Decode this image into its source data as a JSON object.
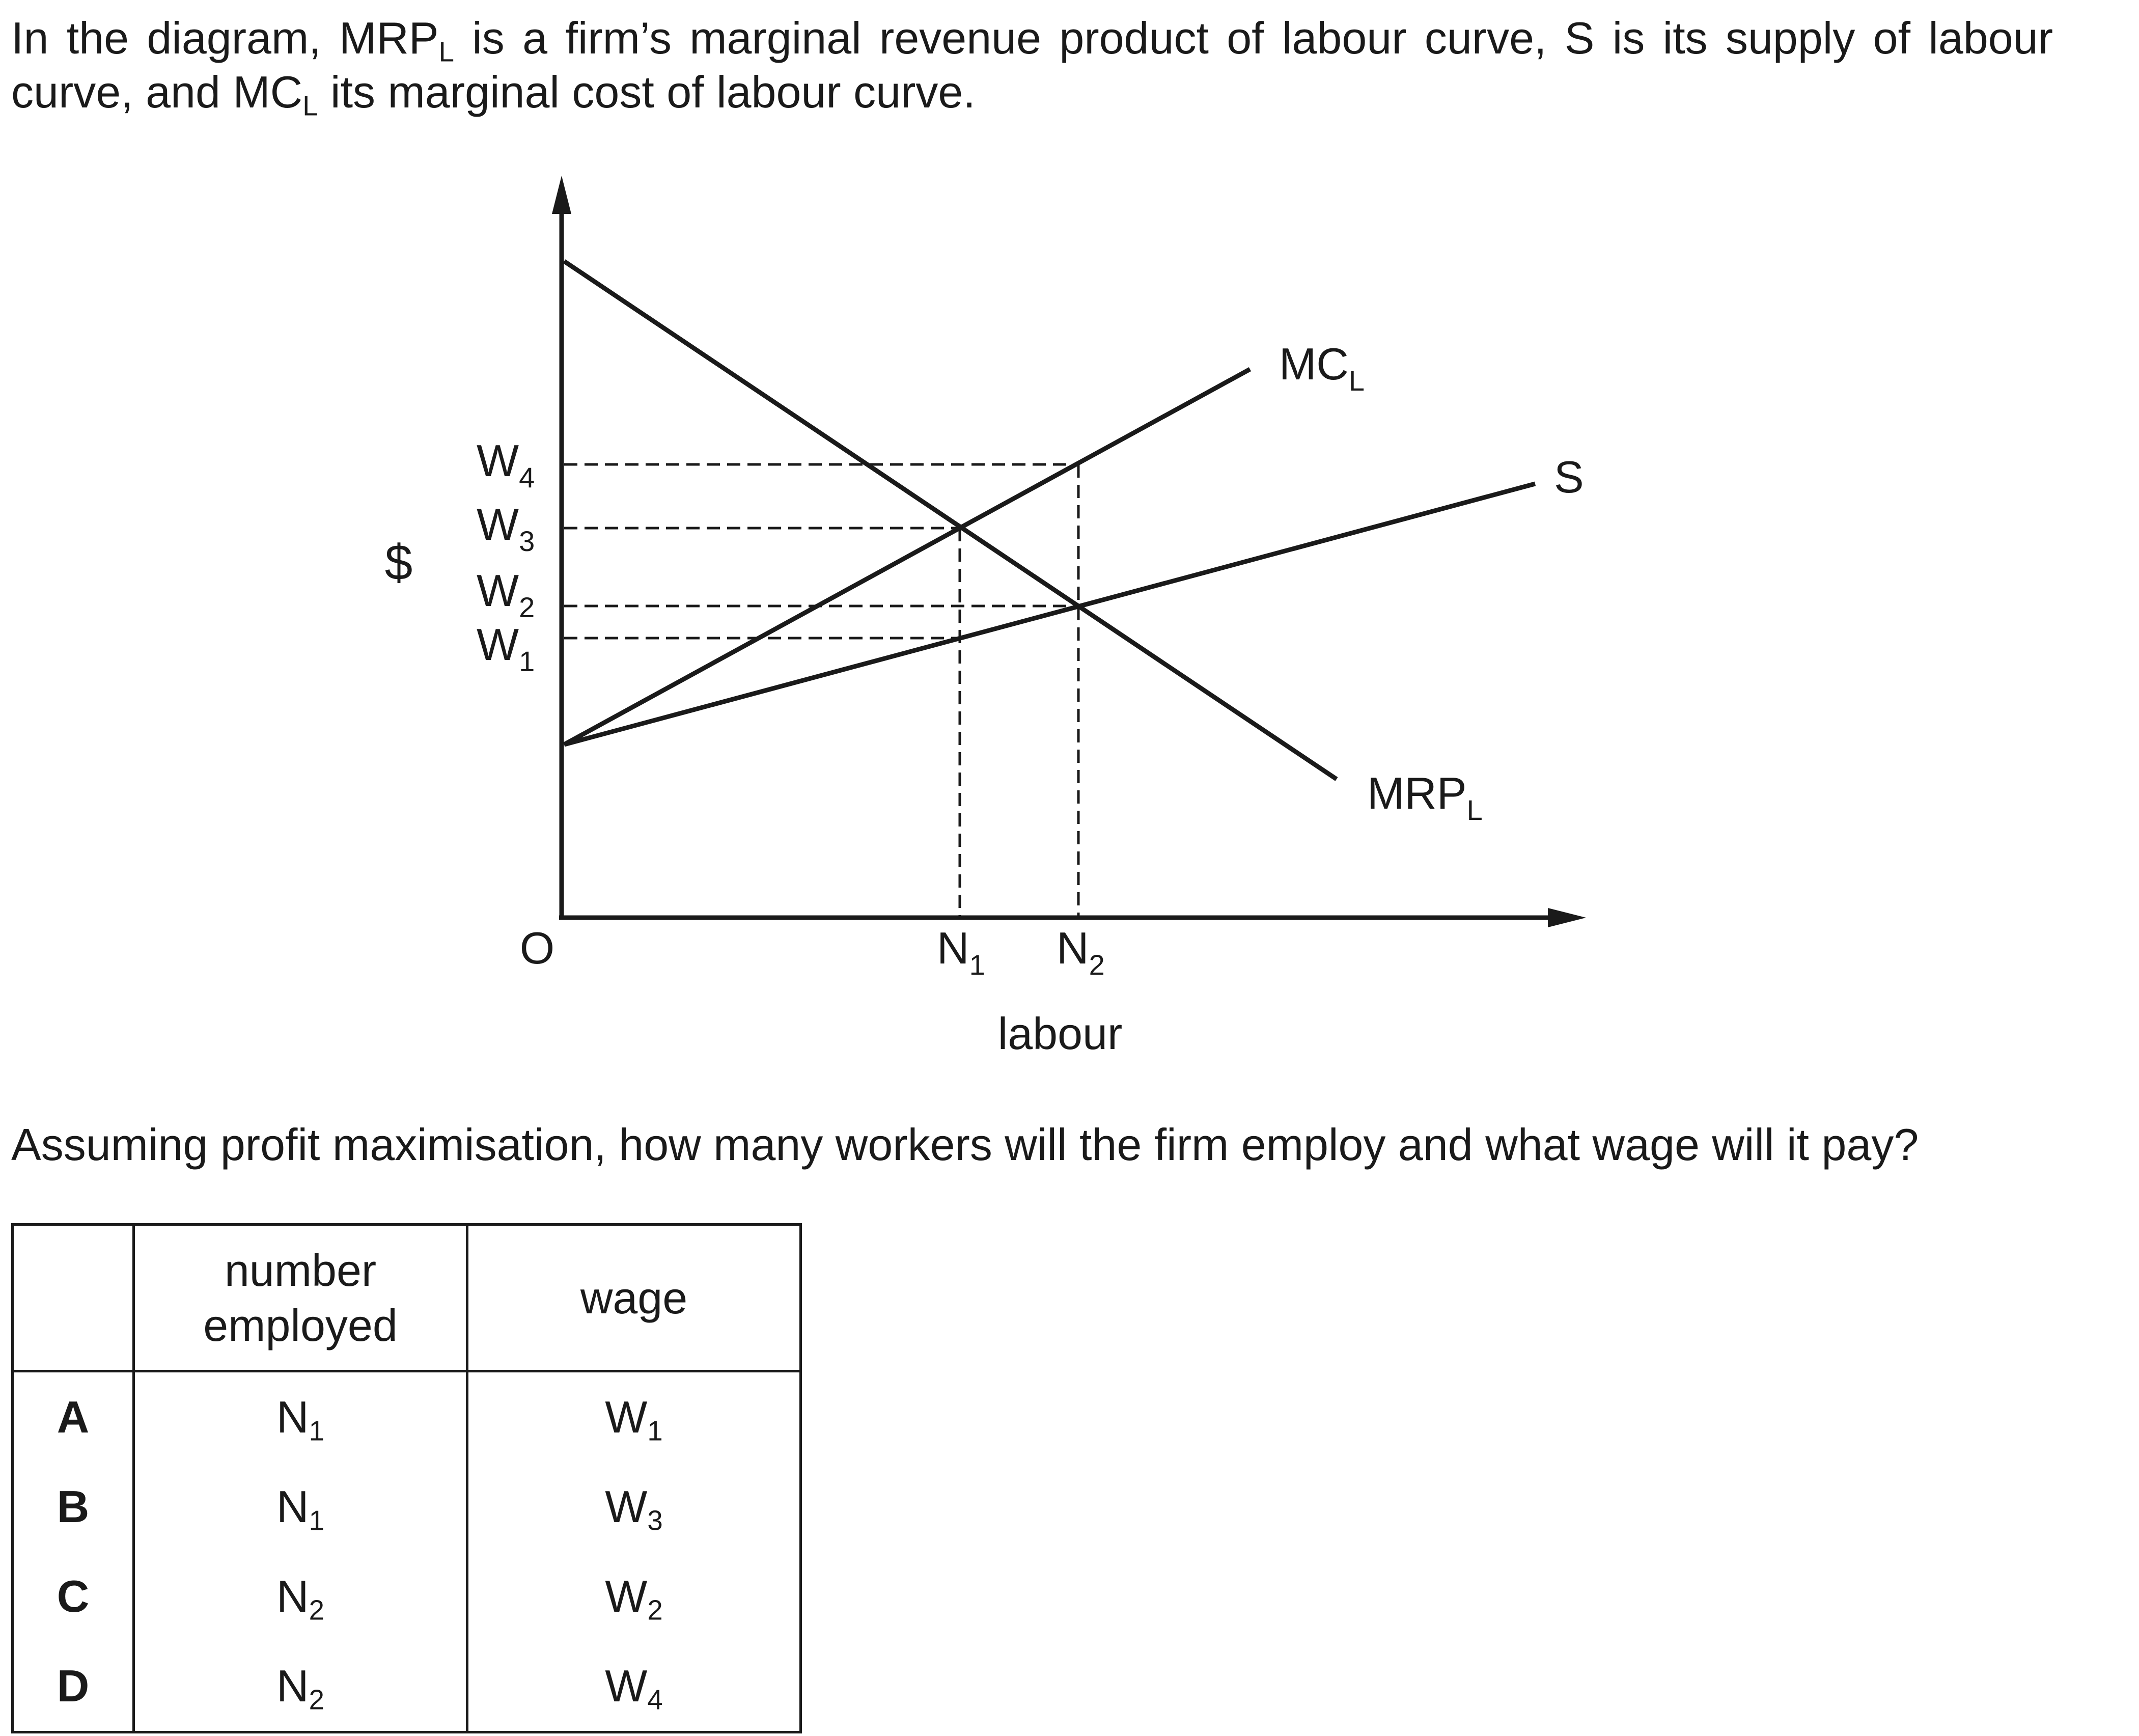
{
  "stem": {
    "p1": "In the diagram, MRP",
    "s1": "L",
    "p2": " is a firm’s marginal revenue product of labour curve, S is its supply of labour curve, and MC",
    "s2": "L",
    "p3": " its marginal cost of labour curve."
  },
  "diagram": {
    "y_axis_label": "$",
    "x_axis_label": "labour",
    "origin_label": "O",
    "wage_ticks": [
      {
        "base": "W",
        "sub": "4"
      },
      {
        "base": "W",
        "sub": "3"
      },
      {
        "base": "W",
        "sub": "2"
      },
      {
        "base": "W",
        "sub": "1"
      }
    ],
    "quantity_ticks": [
      {
        "base": "N",
        "sub": "1"
      },
      {
        "base": "N",
        "sub": "2"
      }
    ],
    "curves": {
      "mcl": {
        "base": "MC",
        "sub": "L"
      },
      "supply": {
        "base": "S",
        "sub": ""
      },
      "mrpl": {
        "base": "MRP",
        "sub": "L"
      }
    }
  },
  "question": "Assuming profit maximisation, how many workers will the firm employ and what wage will it pay?",
  "options_table": {
    "headers": {
      "number_line1": "number",
      "number_line2": "employed",
      "wage": "wage"
    },
    "rows": [
      {
        "letter": "A",
        "n_base": "N",
        "n_sub": "1",
        "w_base": "W",
        "w_sub": "1"
      },
      {
        "letter": "B",
        "n_base": "N",
        "n_sub": "1",
        "w_base": "W",
        "w_sub": "3"
      },
      {
        "letter": "C",
        "n_base": "N",
        "n_sub": "2",
        "w_base": "W",
        "w_sub": "2"
      },
      {
        "letter": "D",
        "n_base": "N",
        "n_sub": "2",
        "w_base": "W",
        "w_sub": "4"
      }
    ]
  }
}
